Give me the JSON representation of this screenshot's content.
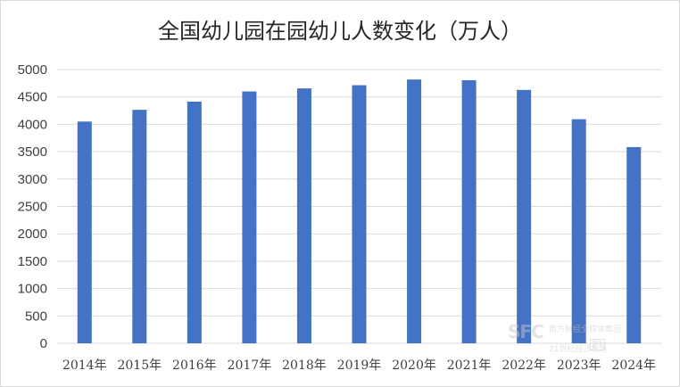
{
  "chart_data": {
    "type": "bar",
    "title": "全国幼儿园在园幼儿人数变化（万人）",
    "categories": [
      "2014年",
      "2015年",
      "2016年",
      "2017年",
      "2018年",
      "2019年",
      "2020年",
      "2021年",
      "2022年",
      "2023年",
      "2024年"
    ],
    "values": [
      4050,
      4265,
      4414,
      4600,
      4656,
      4714,
      4818,
      4805,
      4628,
      4093,
      3584
    ],
    "ylim": [
      0,
      5000
    ],
    "yticks": [
      0,
      500,
      1000,
      1500,
      2000,
      2500,
      3000,
      3500,
      4000,
      4500,
      5000
    ],
    "grid": true,
    "legend": "none",
    "bar_color": "#4472C4",
    "gridline_color": "#d9d9d9"
  },
  "watermark": {
    "logo_text": "SFC",
    "line1": "南方财经全媒体集团",
    "line2": "21世纪经济报道",
    "badge": "21"
  }
}
